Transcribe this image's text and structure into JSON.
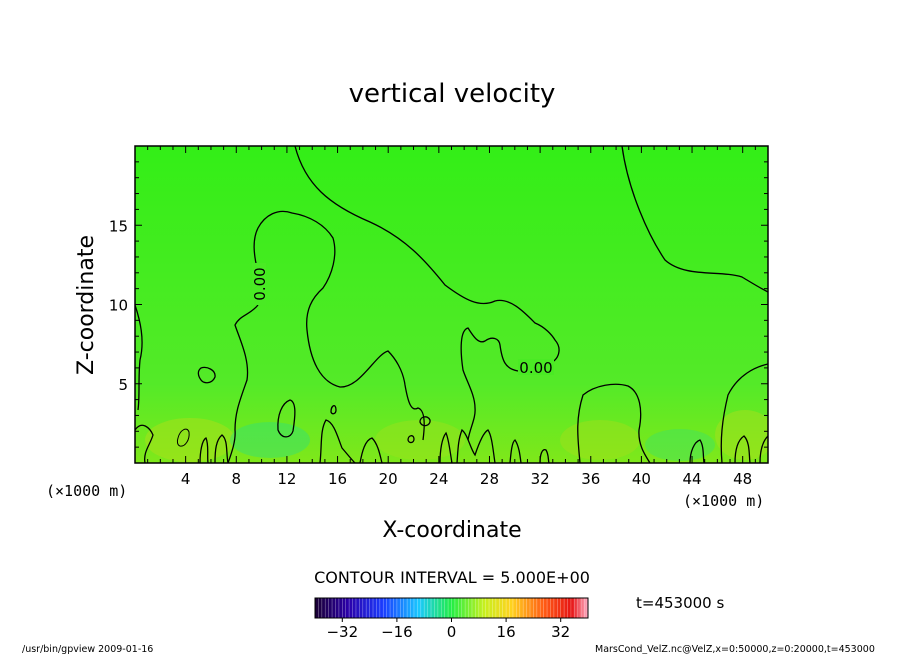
{
  "chart_data": {
    "type": "contour",
    "title": "vertical velocity",
    "xlabel": "X-coordinate",
    "ylabel": "Z-coordinate",
    "x_unit": "(×1000 m)",
    "y_unit": "(×1000 m)",
    "xlim": [
      0,
      50
    ],
    "ylim": [
      0,
      20
    ],
    "x_ticks": [
      4,
      8,
      12,
      16,
      20,
      24,
      28,
      32,
      36,
      40,
      44,
      48
    ],
    "y_ticks": [
      5,
      10,
      15
    ],
    "contour_interval_text": "CONTOUR INTERVAL = 5.000E+00",
    "contour_labels": [
      "0.00",
      "0.00"
    ],
    "time_text": "t=453000 s",
    "colorbar": {
      "range": [
        -40,
        40
      ],
      "ticks": [
        -32,
        -16,
        0,
        16,
        32
      ]
    }
  },
  "footer": {
    "left": "/usr/bin/gpview   2009-01-16",
    "right": "MarsCond_VelZ.nc@VelZ,x=0:50000,z=0:20000,t=453000"
  }
}
